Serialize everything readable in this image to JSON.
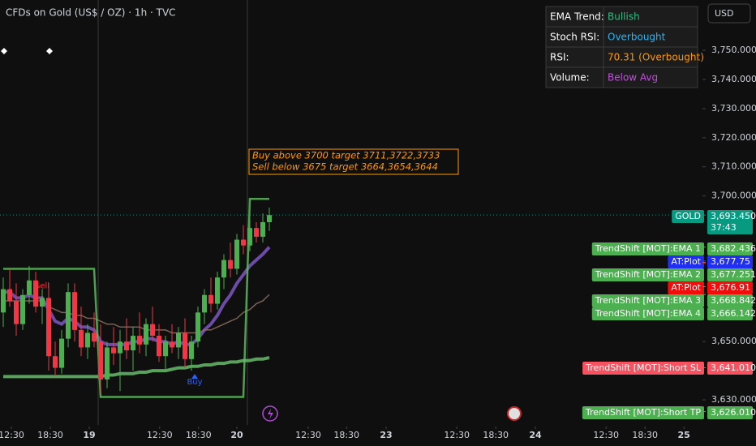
{
  "header": {
    "title": "CFDs on Gold (US$ / OZ) · 1h · TVC",
    "currency": "USD"
  },
  "info_table": {
    "rows": [
      {
        "label": "EMA Trend:",
        "value": "Bullish",
        "color": "#26c281"
      },
      {
        "label": "Stoch RSI:",
        "value": "Overbought",
        "color": "#29b6f6"
      },
      {
        "label": "RSI:",
        "value": "70.31 (Overbought)",
        "color": "#ff9800"
      },
      {
        "label": "Volume:",
        "value": "Below Avg",
        "color": "#c44ee0"
      }
    ]
  },
  "chart_data": {
    "type": "candlestick",
    "annotation": [
      "Buy above 3700 target 3711,3722,3733",
      "Sell below 3675 target 3664,3654,3644"
    ],
    "signals": [
      {
        "text": "Sell",
        "index": 6,
        "color": "#f23645"
      },
      {
        "text": "Buy",
        "index": 29.5,
        "color": "#2962ff"
      }
    ],
    "up_color": "#4caf50",
    "down_color": "#f23645",
    "open": [
      3660,
      3668,
      3664,
      3656,
      3666,
      3671,
      3662,
      3665,
      3645,
      3641,
      3651,
      3667,
      3654,
      3648,
      3653,
      3650,
      3637,
      3648,
      3646,
      3650,
      3647,
      3652,
      3649,
      3656,
      3652,
      3645,
      3650,
      3648,
      3653,
      3644,
      3650,
      3660,
      3666,
      3663,
      3672,
      3678,
      3675,
      3685,
      3683,
      3689,
      3686,
      3691
    ],
    "high": [
      3672,
      3675,
      3670,
      3668,
      3676,
      3674,
      3668,
      3670,
      3650,
      3654,
      3670,
      3670,
      3662,
      3656,
      3660,
      3656,
      3650,
      3655,
      3654,
      3658,
      3655,
      3660,
      3658,
      3662,
      3656,
      3652,
      3656,
      3655,
      3658,
      3652,
      3662,
      3668,
      3672,
      3674,
      3680,
      3684,
      3687,
      3690,
      3692,
      3691,
      3694,
      3696
    ],
    "low": [
      3655,
      3662,
      3652,
      3654,
      3663,
      3660,
      3656,
      3640,
      3638,
      3639,
      3648,
      3650,
      3645,
      3644,
      3648,
      3632,
      3634,
      3642,
      3633,
      3644,
      3640,
      3646,
      3645,
      3650,
      3643,
      3640,
      3646,
      3644,
      3641,
      3640,
      3648,
      3656,
      3660,
      3661,
      3668,
      3672,
      3673,
      3680,
      3681,
      3684,
      3684,
      3688
    ],
    "close": [
      3668,
      3664,
      3656,
      3666,
      3671,
      3662,
      3665,
      3645,
      3641,
      3651,
      3667,
      3654,
      3648,
      3653,
      3650,
      3637,
      3648,
      3646,
      3650,
      3647,
      3652,
      3649,
      3656,
      3652,
      3645,
      3650,
      3648,
      3653,
      3644,
      3650,
      3660,
      3666,
      3663,
      3672,
      3678,
      3675,
      3685,
      3683,
      3689,
      3686,
      3691,
      3693.45
    ],
    "lines": [
      {
        "color": "#7e57c2",
        "width": 4,
        "values": [
          3667,
          3667,
          3665,
          3665,
          3666,
          3665,
          3665,
          3661,
          3657,
          3656,
          3658,
          3657,
          3655,
          3655,
          3654,
          3650,
          3649,
          3649,
          3649,
          3649,
          3650,
          3650,
          3651,
          3651,
          3650,
          3650,
          3649,
          3650,
          3649,
          3649,
          3651,
          3654,
          3656,
          3659,
          3663,
          3666,
          3670,
          3673,
          3676,
          3678,
          3680,
          3682.436
        ]
      },
      {
        "color": "#8d6e63",
        "width": 1.5,
        "values": [
          3664,
          3664,
          3664,
          3664,
          3664,
          3664,
          3664,
          3662,
          3661,
          3660,
          3660,
          3659,
          3659,
          3658,
          3658,
          3657,
          3656,
          3656,
          3655,
          3655,
          3655,
          3655,
          3654,
          3654,
          3654,
          3654,
          3653,
          3653,
          3653,
          3653,
          3653,
          3654,
          3654,
          3655,
          3656,
          3657,
          3658,
          3660,
          3661,
          3663,
          3664,
          3666.142
        ]
      },
      {
        "color": "#5cb85c",
        "width": 2.5,
        "values": [
          3675,
          3675,
          3675,
          3675,
          3675,
          3675,
          3675,
          3675,
          3675,
          3675,
          3675,
          3675,
          3675,
          3675,
          3675,
          3631,
          3631,
          3631,
          3631,
          3631,
          3631,
          3631,
          3631,
          3631,
          3631,
          3631,
          3631,
          3631,
          3631,
          3631,
          3631,
          3631,
          3631,
          3631,
          3631,
          3631,
          3631,
          3631,
          3699,
          3699,
          3699,
          3699
        ]
      },
      {
        "color": "#66bb6a",
        "width": 4,
        "values": [
          3638,
          3638,
          3638,
          3638,
          3638,
          3638,
          3638,
          3638,
          3638,
          3638,
          3638,
          3638,
          3638,
          3638,
          3638,
          3638,
          3638.5,
          3638.5,
          3639,
          3639,
          3639,
          3639.5,
          3639.5,
          3640,
          3640,
          3640,
          3640.5,
          3641,
          3641,
          3641.5,
          3641.5,
          3642,
          3642,
          3642.5,
          3642.5,
          3643,
          3643,
          3643.5,
          3643.5,
          3644,
          3644,
          3644.5
        ]
      }
    ],
    "xlim": [
      -0.5,
      107.75
    ],
    "xticks": [
      {
        "value": 1.25,
        "label": "12:30"
      },
      {
        "value": 7.25,
        "label": "18:30"
      },
      {
        "value": 13.25,
        "label": "19"
      },
      {
        "value": 24.1,
        "label": "12:30"
      },
      {
        "value": 30.1,
        "label": "18:30"
      },
      {
        "value": 36,
        "label": "20"
      },
      {
        "value": 47,
        "label": "12:30"
      },
      {
        "value": 52.9,
        "label": "18:30"
      },
      {
        "value": 59,
        "label": "23"
      },
      {
        "value": 69.9,
        "label": "12:30"
      },
      {
        "value": 75.9,
        "label": "18:30"
      },
      {
        "value": 82,
        "label": "24"
      },
      {
        "value": 92.9,
        "label": "12:30"
      },
      {
        "value": 98.9,
        "label": "18:30"
      },
      {
        "value": 104.9,
        "label": "25"
      }
    ],
    "ylim": [
      3620,
      3767
    ],
    "yticks": [
      {
        "value": 3750,
        "label": "3,750.000"
      },
      {
        "value": 3740,
        "label": "3,740.000"
      },
      {
        "value": 3730,
        "label": "3,730.000"
      },
      {
        "value": 3720,
        "label": "3,720.000"
      },
      {
        "value": 3710,
        "label": "3,710.000"
      },
      {
        "value": 3700,
        "label": "3,700.000"
      },
      {
        "value": 3650,
        "label": "3,650.000"
      },
      {
        "value": 3630,
        "label": "3,630.000"
      }
    ],
    "price_labels": [
      {
        "name": "GOLD",
        "value": 3693.45,
        "label": "3,693.450",
        "countdown": "37:43",
        "color": "#089981"
      },
      {
        "name": "TrendShift [MOT]:EMA 1",
        "value": 3682.436,
        "label": "3,682.436",
        "color": "#4caf50"
      },
      {
        "name": "AT:Plot",
        "value": 3677.75,
        "label": "3,677.75",
        "color": "#2130f0"
      },
      {
        "name": "TrendShift [MOT]:EMA 2",
        "value": 3677.251,
        "label": "3,677.251",
        "color": "#4caf50"
      },
      {
        "name": "AT:Plot",
        "value": 3676.91,
        "label": "3,676.91",
        "color": "#f20d0d"
      },
      {
        "name": "TrendShift [MOT]:EMA 3",
        "value": 3668.842,
        "label": "3,668.842",
        "color": "#4caf50"
      },
      {
        "name": "TrendShift [MOT]:EMA 4",
        "value": 3666.142,
        "label": "3,666.142",
        "color": "#4caf50"
      },
      {
        "name": "TrendShift [MOT]:Short SL",
        "value": 3641.01,
        "label": "3,641.010",
        "color": "#f7525f"
      },
      {
        "name": "TrendShift [MOT]:Short TP",
        "value": 3626.01,
        "label": "3,626.010",
        "color": "#4caf50"
      }
    ]
  }
}
